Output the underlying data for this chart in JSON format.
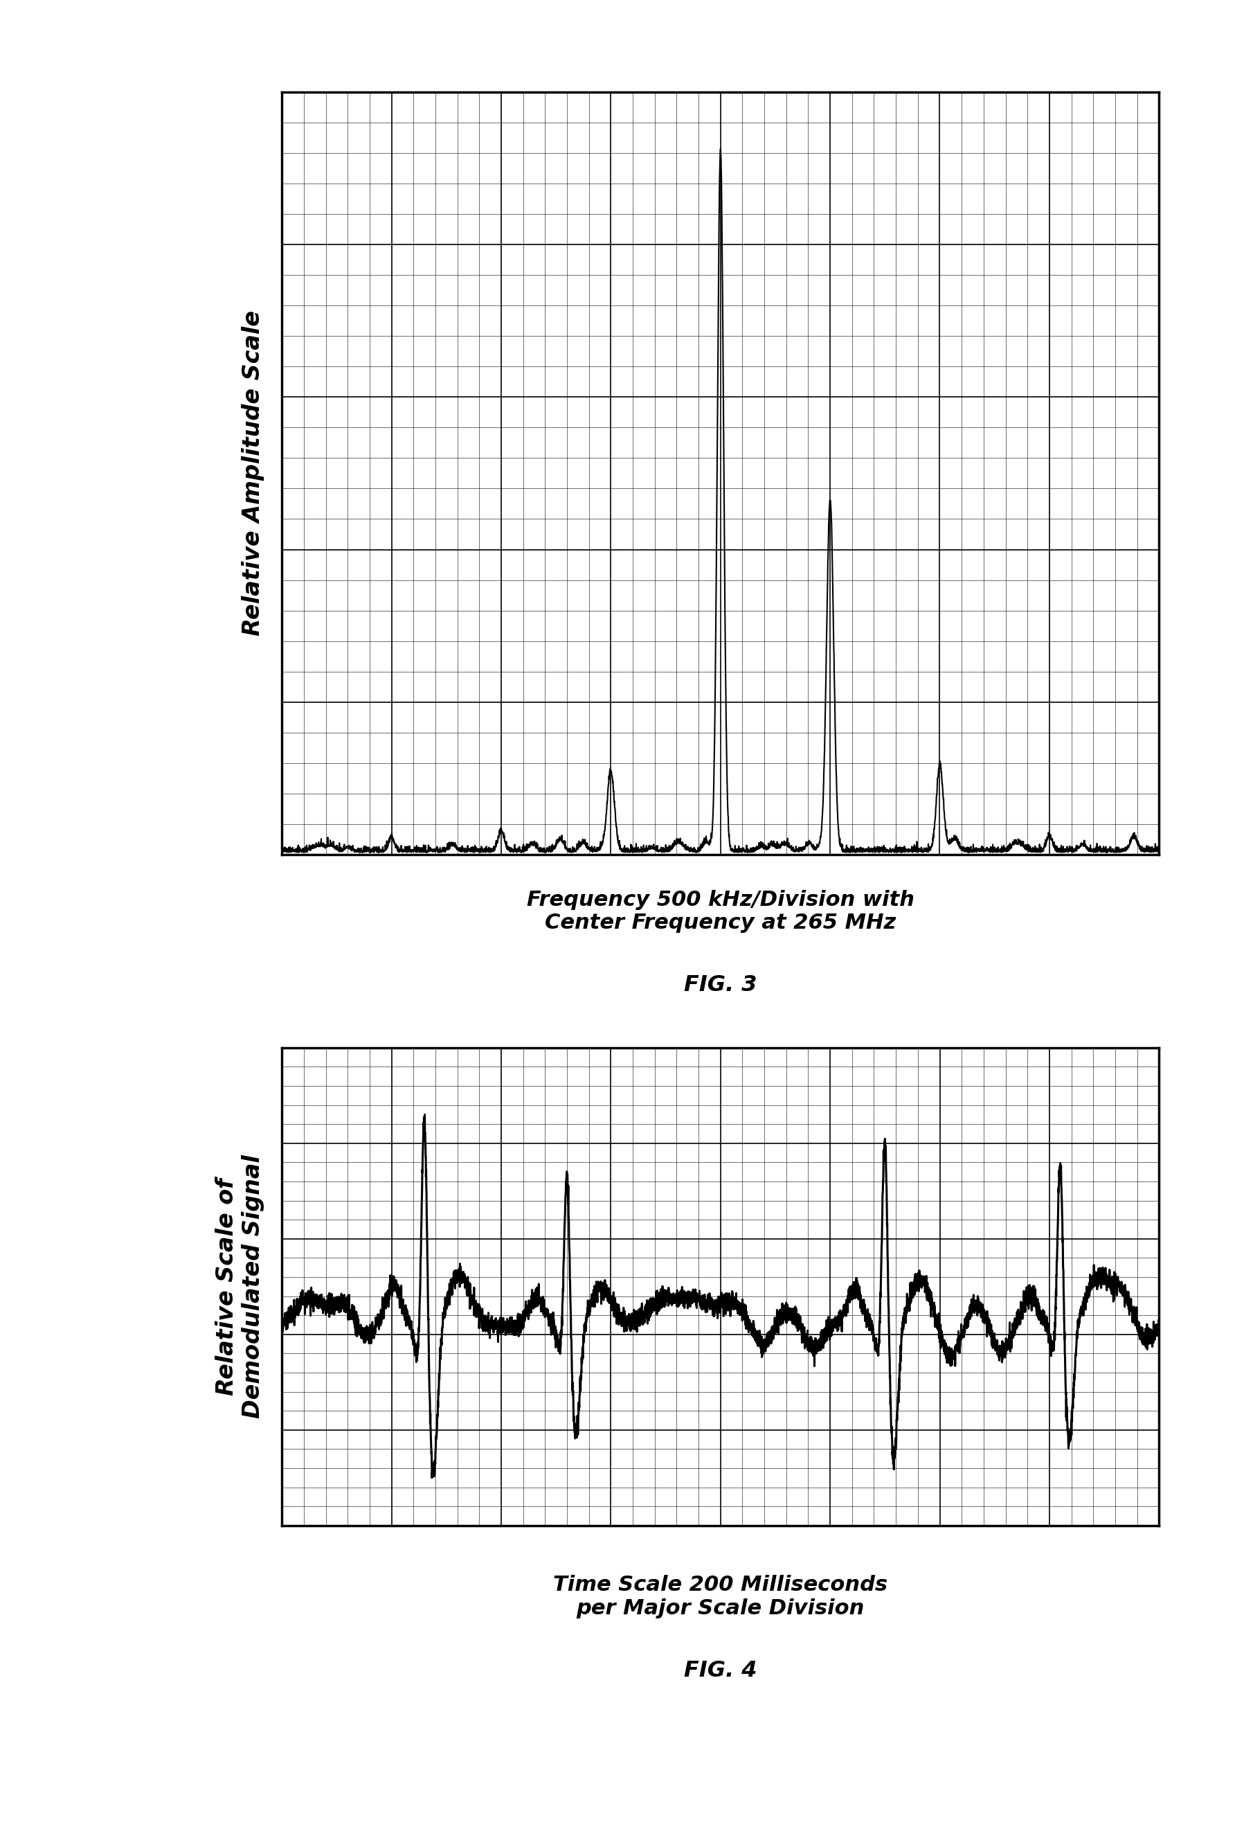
{
  "fig3_title": "Frequency 500 kHz/Division with\nCenter Frequency at 265 MHz",
  "fig3_label": "FIG. 3",
  "fig4_title": "Time Scale 200 Milliseconds\nper Major Scale Division",
  "fig4_label": "FIG. 4",
  "fig3_ylabel": "Relative Amplitude Scale",
  "fig4_ylabel": "Relative Scale of\nDemodulated Signal",
  "background_color": "#ffffff",
  "line_color": "#000000"
}
